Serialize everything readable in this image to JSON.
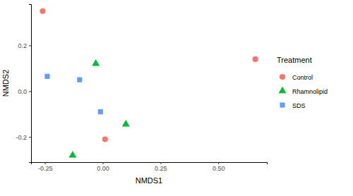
{
  "chart_data": {
    "type": "scatter",
    "x_label": "NMDS1",
    "y_label": "NMDS2",
    "legend_title": "Treatment",
    "legend": "right",
    "grid": false,
    "xlim": [
      -0.31,
      0.71
    ],
    "ylim": [
      -0.31,
      0.38
    ],
    "xticks": [
      -0.25,
      {
        "value": 0,
        "label": "0.00"
      },
      0.25,
      {
        "value": 0.5,
        "label": "0.50"
      }
    ],
    "yticks": [
      -0.2,
      {
        "value": 0,
        "label": "0.0"
      },
      0.2
    ],
    "series": [
      {
        "name": "Control",
        "color": "#F8766D",
        "marker": "circle",
        "x": [
          -0.26,
          0.66,
          0.01
        ],
        "values": [
          0.35,
          0.14,
          -0.21
        ]
      },
      {
        "name": "Rhamnolipid",
        "color": "#00BA38",
        "marker": "triangle",
        "x": [
          -0.03,
          0.1,
          -0.13
        ],
        "values": [
          0.12,
          -0.145,
          -0.28
        ]
      },
      {
        "name": "SDS",
        "color": "#619CFF",
        "marker": "square",
        "x": [
          -0.24,
          -0.1,
          -0.01
        ],
        "values": [
          0.065,
          0.05,
          -0.09
        ]
      }
    ]
  }
}
